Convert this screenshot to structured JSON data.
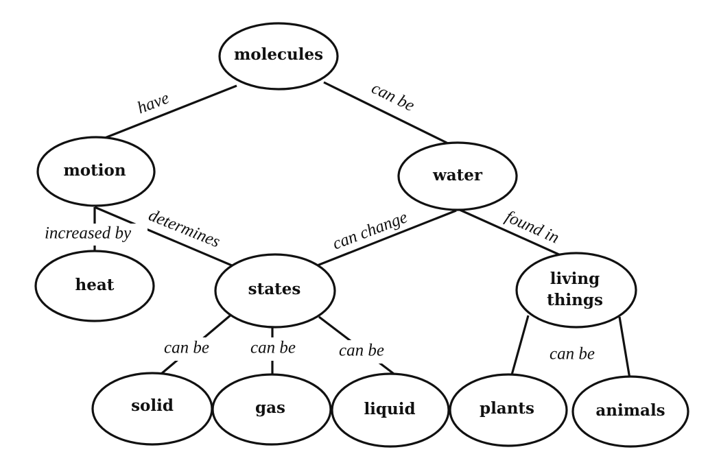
{
  "diagram": {
    "nodes": {
      "molecules": "molecules",
      "motion": "motion",
      "water": "water",
      "heat": "heat",
      "states": "states",
      "living_things": [
        "living",
        "things"
      ],
      "solid": "solid",
      "gas": "gas",
      "liquid": "liquid",
      "plants": "plants",
      "animals": "animals"
    },
    "links": {
      "molecules_motion": "have",
      "molecules_water": "can be",
      "motion_heat": "increased by",
      "motion_states": "determines",
      "water_states": "can change",
      "water_living": "found in",
      "states_solid": "can be",
      "states_gas": "can be",
      "states_liquid": "can be",
      "living_children": "can be"
    }
  }
}
